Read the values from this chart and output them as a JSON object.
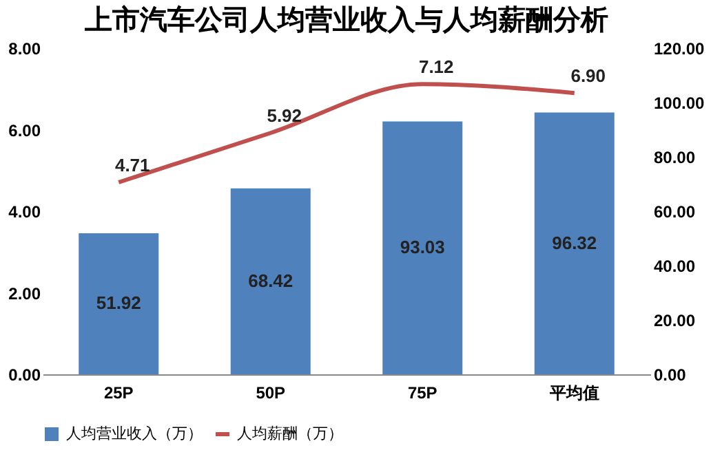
{
  "chart_data": {
    "type": "bar",
    "title": "上市汽车公司人均营业收入与人均薪酬分析",
    "categories": [
      "25P",
      "50P",
      "75P",
      "平均值"
    ],
    "series": [
      {
        "name": "人均营业收入（万）",
        "axis": "y2",
        "color": "#4f81bd",
        "values": [
          51.92,
          68.42,
          93.03,
          96.32
        ],
        "value_labels": [
          "51.92",
          "68.42",
          "93.03",
          "96.32"
        ]
      },
      {
        "name": "人均薪酬（万）",
        "type": "line",
        "color": "#c0504d",
        "values": [
          4.71,
          5.92,
          7.12,
          6.9
        ],
        "value_labels": [
          "4.71",
          "5.92",
          "7.12",
          "6.90"
        ]
      }
    ],
    "ylim": [
      0,
      8
    ],
    "yticks": [
      {
        "value": 0,
        "label": "0.00"
      },
      {
        "value": 2,
        "label": "2.00"
      },
      {
        "value": 4,
        "label": "4.00"
      },
      {
        "value": 6,
        "label": "6.00"
      },
      {
        "value": 8,
        "label": "8.00"
      }
    ],
    "y2lim": [
      0,
      120
    ],
    "y2ticks": [
      {
        "value": 0,
        "label": "0.00"
      },
      {
        "value": 20,
        "label": "20.00"
      },
      {
        "value": 40,
        "label": "40.00"
      },
      {
        "value": 60,
        "label": "60.00"
      },
      {
        "value": 80,
        "label": "80.00"
      },
      {
        "value": 100,
        "label": "100.00"
      },
      {
        "value": 120,
        "label": "120.00"
      }
    ],
    "legend": "bottom",
    "grid": false,
    "marker": "none",
    "line_style": "solid"
  }
}
